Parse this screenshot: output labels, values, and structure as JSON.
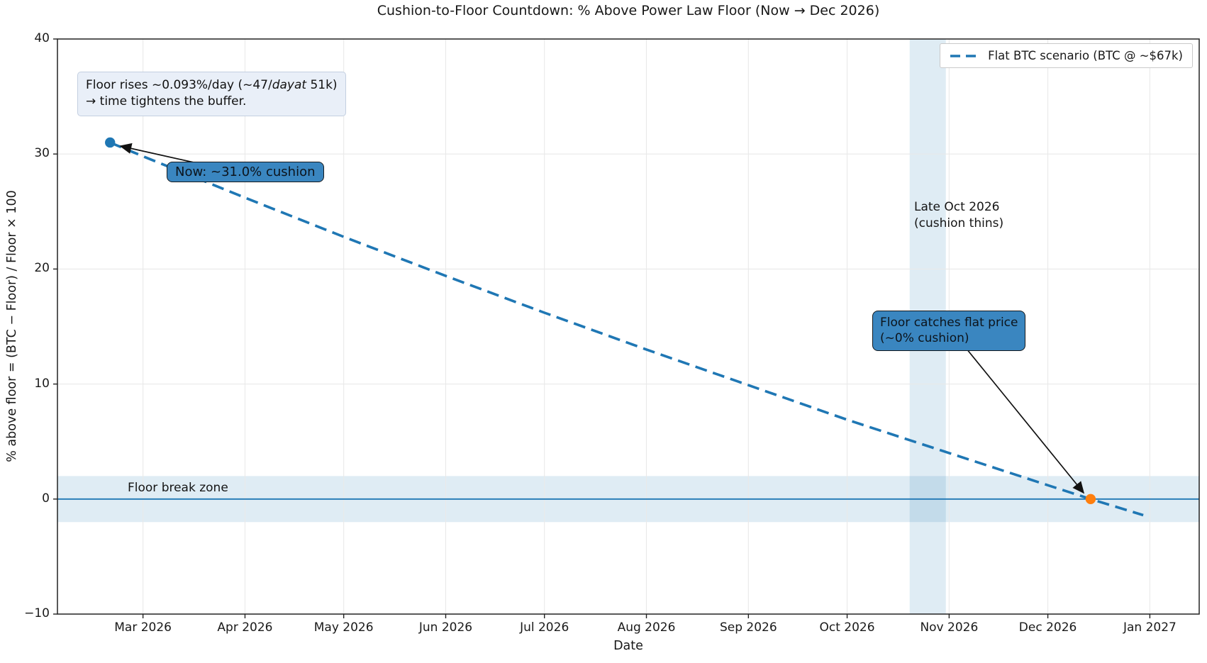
{
  "title": "Cushion-to-Floor Countdown: % Above Power Law Floor (Now → Dec 2026)",
  "annotations": {
    "info_box": {
      "line1_prefix": "Floor rises ~0.093%/day (~47/",
      "line1_italic": "dayat",
      "line1_suffix": " 51k)",
      "line2": "→ time tightens the buffer."
    },
    "now_box": {
      "text": "Now: ~31.0% cushion"
    },
    "catch_box": {
      "line1": "Floor catches flat price",
      "line2": "(~0% cushion)"
    },
    "late_oct": {
      "line1": "Late Oct 2026",
      "line2": "(cushion thins)"
    },
    "floor_break_zone": {
      "text": "Floor break zone"
    }
  },
  "colors": {
    "series_blue": "#1f77b4",
    "marker_orange": "#ff7f0e",
    "band_fill": "#1f77b4",
    "zero_line": "#1f77b4",
    "annotation_box_blue": "#3a86c0",
    "info_box_bg": "#e9eff8",
    "grid": "#e9e9e9",
    "spine": "#222222",
    "arrow": "#111111"
  },
  "chart_data": {
    "type": "line",
    "title": "Cushion-to-Floor Countdown: % Above Power Law Floor (Now → Dec 2026)",
    "xlabel": "Date",
    "ylabel": "% above floor  =  (BTC − Floor) / Floor × 100",
    "ylim": [
      -10,
      40
    ],
    "x_domain_days": [
      2,
      349
    ],
    "x_domain_note": "days since 2026-02-01; axis spans ~Feb 3 2026 to ~Jan 16 2027",
    "grid": true,
    "x_ticks": [
      {
        "day": 28,
        "label": "Mar 2026"
      },
      {
        "day": 59,
        "label": "Apr 2026"
      },
      {
        "day": 89,
        "label": "May 2026"
      },
      {
        "day": 120,
        "label": "Jun 2026"
      },
      {
        "day": 150,
        "label": "Jul 2026"
      },
      {
        "day": 181,
        "label": "Aug 2026"
      },
      {
        "day": 212,
        "label": "Sep 2026"
      },
      {
        "day": 242,
        "label": "Oct 2026"
      },
      {
        "day": 273,
        "label": "Nov 2026"
      },
      {
        "day": 303,
        "label": "Dec 2026"
      },
      {
        "day": 334,
        "label": "Jan 2027"
      }
    ],
    "y_ticks": [
      {
        "value": 40,
        "label": "40"
      },
      {
        "value": 30,
        "label": "30"
      },
      {
        "value": 20,
        "label": "20"
      },
      {
        "value": 10,
        "label": "10"
      },
      {
        "value": 0,
        "label": "0"
      },
      {
        "value": -10,
        "label": "−10"
      }
    ],
    "legend": {
      "position": "upper right",
      "entries": [
        {
          "label": "Flat BTC scenario (BTC @ ~$67k)",
          "color": "#1f77b4",
          "style": "dashed"
        }
      ]
    },
    "series": [
      {
        "name": "Flat BTC scenario (BTC @ ~$67k)",
        "color": "#1f77b4",
        "style": "dashed",
        "points": [
          {
            "date": "2026-02-19",
            "day": 18,
            "value": 31.0
          },
          {
            "date": "2026-03-01",
            "day": 28,
            "value": 29.8
          },
          {
            "date": "2026-04-01",
            "day": 59,
            "value": 26.2
          },
          {
            "date": "2026-05-01",
            "day": 89,
            "value": 22.8
          },
          {
            "date": "2026-06-01",
            "day": 120,
            "value": 19.4
          },
          {
            "date": "2026-07-01",
            "day": 150,
            "value": 16.2
          },
          {
            "date": "2026-08-01",
            "day": 181,
            "value": 13.0
          },
          {
            "date": "2026-09-01",
            "day": 212,
            "value": 9.9
          },
          {
            "date": "2026-10-01",
            "day": 242,
            "value": 6.9
          },
          {
            "date": "2026-11-01",
            "day": 273,
            "value": 4.0
          },
          {
            "date": "2026-12-01",
            "day": 303,
            "value": 1.2
          },
          {
            "date": "2026-12-14",
            "day": 316,
            "value": 0.0
          },
          {
            "date": "2026-12-30",
            "day": 332,
            "value": -1.4
          }
        ]
      }
    ],
    "markers": [
      {
        "name": "now",
        "date": "2026-02-19",
        "day": 18,
        "value": 31.0,
        "color": "#1f77b4",
        "label": "Now: ~31.0% cushion"
      },
      {
        "name": "floor-catch",
        "date": "2026-12-14",
        "day": 316,
        "value": 0.0,
        "color": "#ff7f0e",
        "label": "Floor catches flat price (~0% cushion)"
      }
    ],
    "bands": [
      {
        "orientation": "horizontal",
        "from": -2,
        "to": 2,
        "label": "Floor break zone",
        "fill": "#1f77b4",
        "opacity": 0.14
      },
      {
        "orientation": "vertical",
        "from_day": 261,
        "to_day": 272,
        "label": "Late Oct 2026 (cushion thins)",
        "fill": "#1f77b4",
        "opacity": 0.14
      }
    ],
    "reference_lines": [
      {
        "orientation": "horizontal",
        "value": 0,
        "color": "#1f77b4",
        "style": "solid"
      }
    ]
  }
}
